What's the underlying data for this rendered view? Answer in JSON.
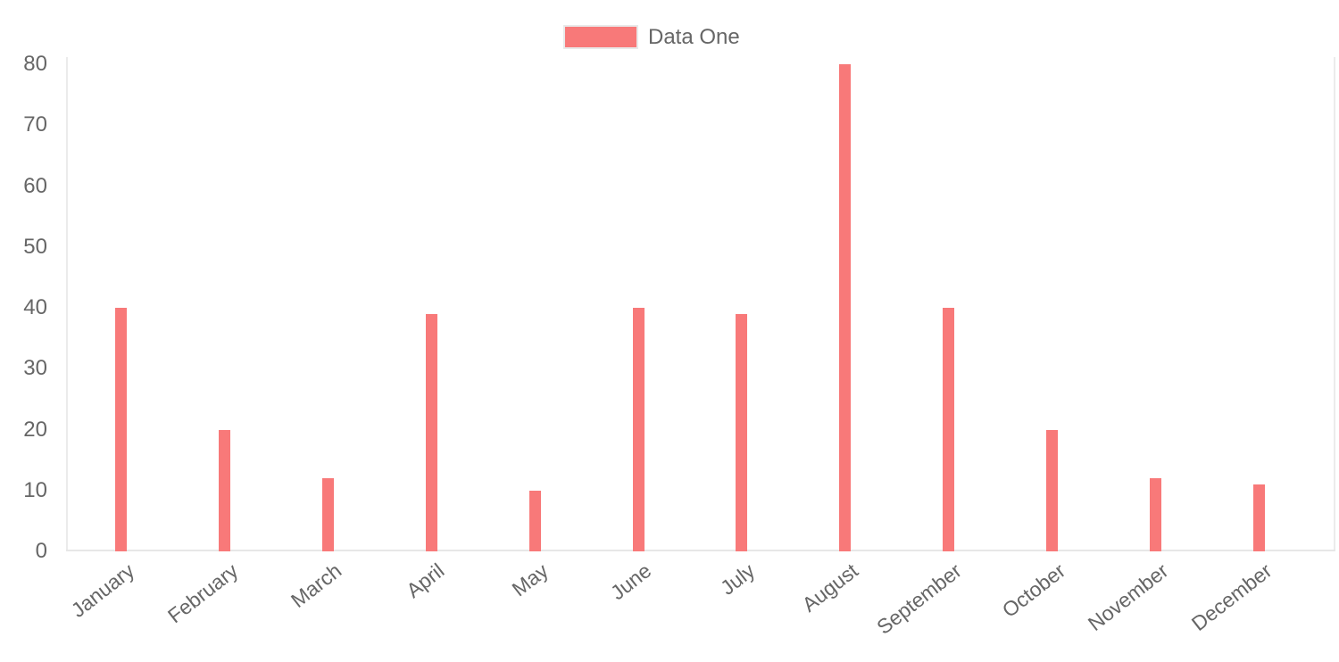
{
  "chart_data": {
    "type": "bar",
    "title": "",
    "categories": [
      "January",
      "February",
      "March",
      "April",
      "May",
      "June",
      "July",
      "August",
      "September",
      "October",
      "November",
      "December"
    ],
    "series": [
      {
        "name": "Data One",
        "values": [
          40,
          20,
          12,
          39,
          10,
          40,
          39,
          80,
          40,
          20,
          12,
          11
        ]
      }
    ],
    "xlabel": "",
    "ylabel": "",
    "ylim": [
      0,
      80
    ],
    "yticks": [
      0,
      10,
      20,
      30,
      40,
      50,
      60,
      70,
      80
    ],
    "legend_position": "top-center",
    "grid": "chart-area-edges-only",
    "bar_color": "#f87979",
    "axis_line_color": "#ebebeb",
    "text_color": "#666666",
    "background_color": "#ffffff"
  }
}
